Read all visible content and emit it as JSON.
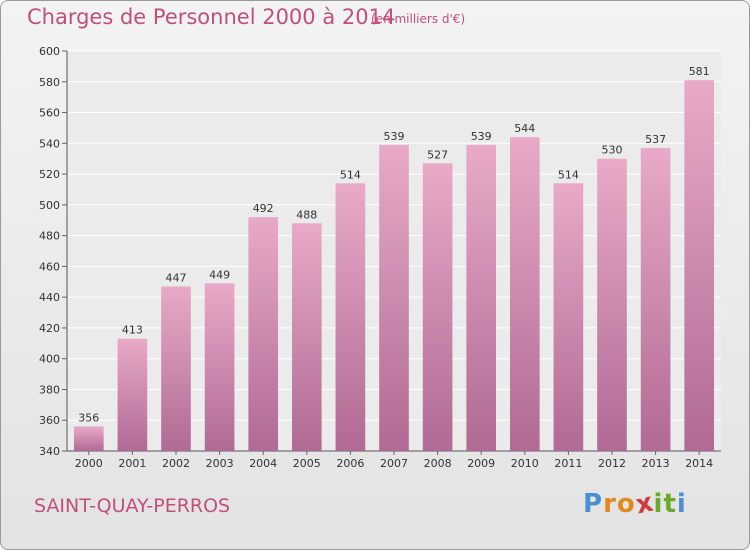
{
  "header": {
    "title": "Charges de Personnel 2000 à 2014",
    "subtitle": "(en milliers d'€)"
  },
  "footer": {
    "commune": "SAINT-QUAY-PERROS",
    "logo_letters": [
      "P",
      "r",
      "o",
      "x",
      "i",
      "t",
      "i"
    ]
  },
  "colors": {
    "accent": "#c0507a",
    "bar_top": "#e8aac8",
    "bar_bottom": "#b06a94",
    "logo": [
      "#4a8fcf",
      "#e08a1e",
      "#e08a1e",
      "#d23a3a",
      "#6aaa2a",
      "#6aaa2a",
      "#4a8fcf"
    ]
  },
  "chart_data": {
    "type": "bar",
    "title": "Charges de Personnel 2000 à 2014",
    "subtitle": "(en milliers d'€)",
    "xlabel": "",
    "ylabel": "",
    "categories": [
      "2000",
      "2001",
      "2002",
      "2003",
      "2004",
      "2005",
      "2006",
      "2007",
      "2008",
      "2009",
      "2010",
      "2011",
      "2012",
      "2013",
      "2014"
    ],
    "values": [
      356,
      413,
      447,
      449,
      492,
      488,
      514,
      539,
      527,
      539,
      544,
      514,
      530,
      537,
      581
    ],
    "ylim": [
      340,
      600
    ],
    "yticks": [
      340,
      360,
      380,
      400,
      420,
      440,
      460,
      480,
      500,
      520,
      540,
      560,
      580,
      600
    ],
    "grid": true
  }
}
